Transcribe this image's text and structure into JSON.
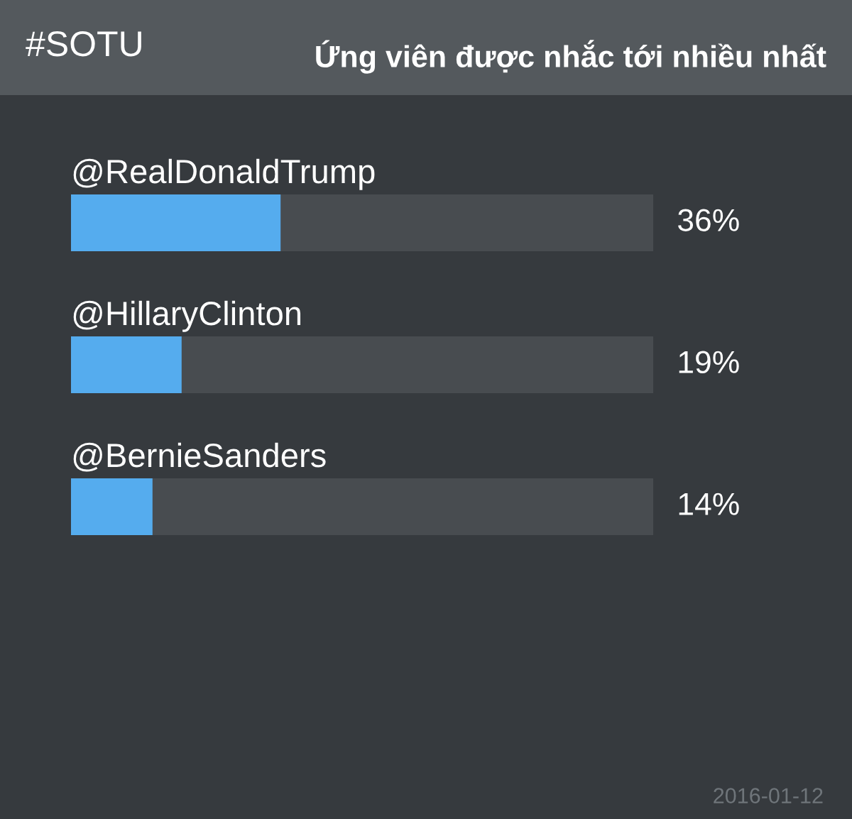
{
  "chart_data": {
    "type": "bar",
    "orientation": "horizontal",
    "title": "Ứng viên được nhắc tới nhiều nhất",
    "subtitle": "#SOTU",
    "categories": [
      "@RealDonaldTrump",
      "@HillaryClinton",
      "@BernieSanders"
    ],
    "values": [
      36,
      19,
      14
    ],
    "color": "#55acee",
    "value_labels": [
      "36%",
      "19%",
      "14%"
    ],
    "xlim": [
      0,
      100
    ],
    "tick_labels": "y",
    "annotations": [
      "2016-01-12"
    ]
  }
}
